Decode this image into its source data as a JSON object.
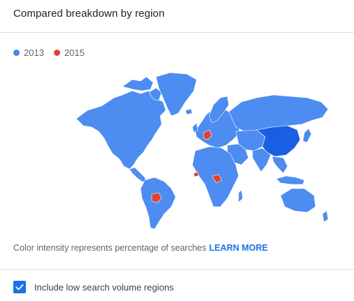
{
  "header": {
    "title": "Compared breakdown by region"
  },
  "legend": {
    "items": [
      {
        "label": "2013",
        "color": "#4285f4"
      },
      {
        "label": "2015",
        "color": "#db4437"
      }
    ]
  },
  "map": {
    "base_color": "#4d8cf0",
    "dark_color": "#1a5fe3",
    "highlight_color": "#db4437",
    "regions_2015": [
      "Germany",
      "Bolivia",
      "Central Africa",
      "Sierra Leone"
    ]
  },
  "footer": {
    "caption": "Color intensity represents percentage of searches",
    "learn_more": "LEARN MORE"
  },
  "options": {
    "include_low_volume_label": "Include low search volume regions",
    "include_low_volume_checked": true
  }
}
